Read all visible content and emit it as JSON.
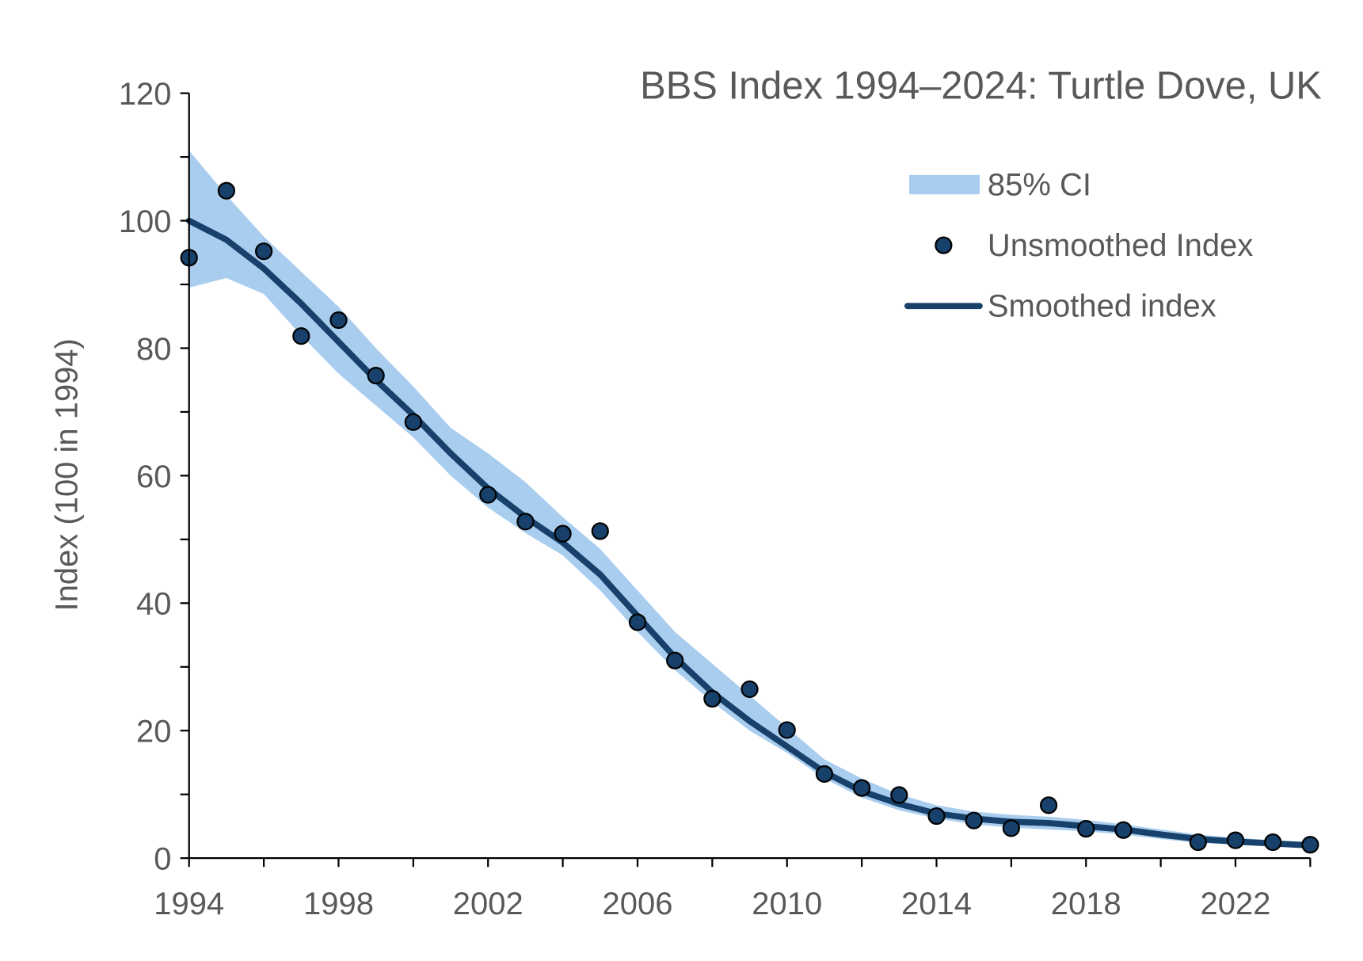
{
  "chart_data": {
    "type": "line",
    "title": "BBS Index 1994–2024: Turtle Dove, UK",
    "xlabel": "",
    "ylabel": "Index (100 in 1994)",
    "xlim": [
      1994,
      2024
    ],
    "ylim": [
      0,
      120
    ],
    "x_tick_labels": [
      "1994",
      "1998",
      "2002",
      "2006",
      "2010",
      "2014",
      "2018",
      "2022"
    ],
    "y_tick_labels": [
      "0",
      "20",
      "40",
      "60",
      "80",
      "100",
      "120"
    ],
    "grid": false,
    "legend_position": "top-right",
    "colors": {
      "ci": "#a9cdee",
      "line": "#17416a",
      "points": "#17416a",
      "text": "#595959"
    },
    "series": [
      {
        "name": "85% CI",
        "type": "band",
        "x": [
          1994,
          1995,
          1996,
          1997,
          1998,
          1999,
          2000,
          2001,
          2002,
          2003,
          2004,
          2005,
          2006,
          2007,
          2008,
          2009,
          2010,
          2011,
          2012,
          2013,
          2014,
          2015,
          2016,
          2017,
          2018,
          2019,
          2020,
          2021,
          2022,
          2023,
          2024
        ],
        "lower": [
          89.5,
          91,
          88.5,
          82,
          76,
          71,
          66,
          60,
          55,
          51,
          47.5,
          42,
          35.5,
          29.5,
          24.5,
          20,
          16.5,
          12.5,
          9.5,
          7.5,
          6.2,
          5.3,
          4.8,
          4.5,
          4.2,
          3.7,
          3,
          2.4,
          2.1,
          1.8,
          1.6
        ],
        "upper": [
          111,
          104,
          97.5,
          92,
          86.5,
          80,
          74,
          67.5,
          63.5,
          59,
          53.5,
          48.5,
          42,
          35.5,
          30.5,
          25.5,
          20.5,
          15.5,
          12.5,
          10,
          8.3,
          7.3,
          6.8,
          6.5,
          6,
          5.3,
          4.5,
          3.7,
          3.2,
          2.8,
          2.5
        ]
      },
      {
        "name": "Unsmoothed Index",
        "type": "scatter",
        "x": [
          1994,
          1995,
          1996,
          1997,
          1998,
          1999,
          2000,
          2002,
          2003,
          2004,
          2005,
          2006,
          2007,
          2008,
          2009,
          2010,
          2011,
          2012,
          2013,
          2014,
          2015,
          2016,
          2017,
          2018,
          2019,
          2021,
          2022,
          2023,
          2024
        ],
        "y": [
          94.2,
          104.7,
          95.2,
          81.9,
          84.4,
          75.7,
          68.4,
          57.0,
          52.8,
          50.9,
          51.3,
          37.0,
          31.0,
          25.0,
          26.5,
          20.1,
          13.2,
          11.0,
          9.9,
          6.6,
          5.9,
          4.7,
          8.3,
          4.6,
          4.4,
          2.5,
          2.8,
          2.5,
          2.1
        ]
      },
      {
        "name": "Smoothed index",
        "type": "line",
        "x": [
          1994,
          1995,
          1996,
          1997,
          1998,
          1999,
          2000,
          2001,
          2002,
          2003,
          2004,
          2005,
          2006,
          2007,
          2008,
          2009,
          2010,
          2011,
          2012,
          2013,
          2014,
          2015,
          2016,
          2017,
          2018,
          2019,
          2020,
          2021,
          2022,
          2023,
          2024
        ],
        "y": [
          100,
          97,
          92.5,
          87,
          81,
          75,
          69.5,
          63.5,
          58,
          53.5,
          49.5,
          44.5,
          38,
          31.5,
          26,
          21.5,
          17.5,
          13.5,
          10.5,
          8.5,
          7,
          6.2,
          5.7,
          5.5,
          5,
          4.5,
          3.7,
          3,
          2.6,
          2.3,
          2
        ]
      }
    ]
  }
}
